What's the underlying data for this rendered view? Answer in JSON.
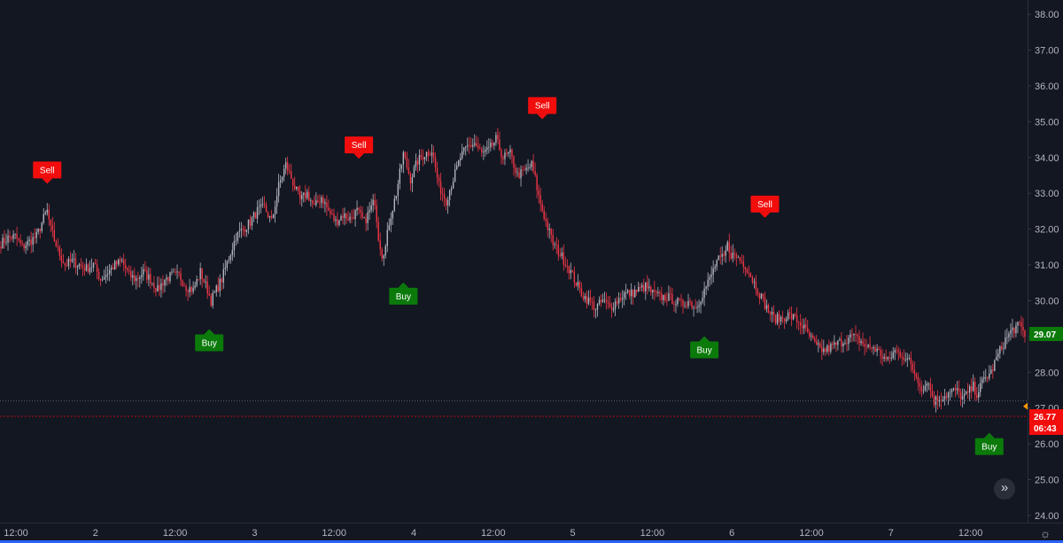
{
  "chart_data": {
    "type": "candlestick",
    "y_axis": {
      "side": "right",
      "range": [
        23.8,
        38.4
      ],
      "ticks": [
        "24.00",
        "25.00",
        "26.00",
        "27.00",
        "28.00",
        "29.00",
        "30.00",
        "31.00",
        "32.00",
        "33.00",
        "34.00",
        "35.00",
        "36.00",
        "37.00",
        "38.00"
      ]
    },
    "x_axis": {
      "ticks": [
        "12:00",
        "2",
        "12:00",
        "3",
        "12:00",
        "4",
        "12:00",
        "5",
        "12:00",
        "6",
        "12:00",
        "7",
        "12:00"
      ]
    },
    "colors": {
      "up": "#b2b5be",
      "down": "#f23645",
      "buy": "#0b7a0b",
      "sell": "#f20d0d",
      "background": "#131722",
      "current_price": "#f20d0d",
      "last_price": "#0b7a0b"
    },
    "price_anchors": [
      [
        0,
        31.6
      ],
      [
        4,
        31.75
      ],
      [
        8,
        31.8
      ],
      [
        12,
        31.5
      ],
      [
        16,
        31.65
      ],
      [
        20,
        31.8
      ],
      [
        24,
        32.3
      ],
      [
        26,
        32.5
      ],
      [
        28,
        32.0
      ],
      [
        32,
        31.4
      ],
      [
        36,
        31.0
      ],
      [
        40,
        31.1
      ],
      [
        44,
        31.0
      ],
      [
        48,
        30.9
      ],
      [
        52,
        31.0
      ],
      [
        56,
        30.6
      ],
      [
        60,
        30.8
      ],
      [
        64,
        31.0
      ],
      [
        68,
        31.1
      ],
      [
        72,
        30.7
      ],
      [
        76,
        30.6
      ],
      [
        80,
        30.8
      ],
      [
        84,
        30.6
      ],
      [
        88,
        30.3
      ],
      [
        92,
        30.6
      ],
      [
        96,
        30.7
      ],
      [
        100,
        30.7
      ],
      [
        104,
        30.4
      ],
      [
        108,
        30.3
      ],
      [
        112,
        30.8
      ],
      [
        116,
        30.3
      ],
      [
        118,
        30.0
      ],
      [
        120,
        30.2
      ],
      [
        124,
        30.6
      ],
      [
        128,
        31.2
      ],
      [
        132,
        31.8
      ],
      [
        136,
        32.0
      ],
      [
        140,
        32.2
      ],
      [
        144,
        32.5
      ],
      [
        148,
        32.6
      ],
      [
        152,
        32.2
      ],
      [
        156,
        33.2
      ],
      [
        160,
        33.8
      ],
      [
        164,
        33.3
      ],
      [
        168,
        32.8
      ],
      [
        172,
        33.0
      ],
      [
        176,
        32.6
      ],
      [
        180,
        32.9
      ],
      [
        184,
        32.5
      ],
      [
        188,
        32.2
      ],
      [
        192,
        32.4
      ],
      [
        196,
        32.3
      ],
      [
        200,
        32.5
      ],
      [
        204,
        32.2
      ],
      [
        208,
        32.6
      ],
      [
        210,
        32.8
      ],
      [
        212,
        31.8
      ],
      [
        214,
        31.3
      ],
      [
        216,
        31.5
      ],
      [
        218,
        32.2
      ],
      [
        222,
        33.0
      ],
      [
        226,
        34.1
      ],
      [
        230,
        33.4
      ],
      [
        234,
        33.9
      ],
      [
        238,
        34.1
      ],
      [
        242,
        34.2
      ],
      [
        246,
        33.2
      ],
      [
        250,
        32.8
      ],
      [
        254,
        33.4
      ],
      [
        258,
        34.0
      ],
      [
        262,
        34.3
      ],
      [
        266,
        34.4
      ],
      [
        270,
        34.1
      ],
      [
        274,
        34.2
      ],
      [
        278,
        34.5
      ],
      [
        282,
        34.0
      ],
      [
        286,
        34.1
      ],
      [
        290,
        33.5
      ],
      [
        294,
        33.6
      ],
      [
        298,
        33.8
      ],
      [
        300,
        33.4
      ],
      [
        302,
        32.9
      ],
      [
        306,
        32.2
      ],
      [
        310,
        31.6
      ],
      [
        314,
        31.3
      ],
      [
        318,
        31.0
      ],
      [
        322,
        30.6
      ],
      [
        326,
        30.2
      ],
      [
        330,
        30.0
      ],
      [
        334,
        29.8
      ],
      [
        338,
        30.0
      ],
      [
        342,
        29.8
      ],
      [
        346,
        30.0
      ],
      [
        350,
        30.2
      ],
      [
        354,
        30.2
      ],
      [
        358,
        30.3
      ],
      [
        362,
        30.4
      ],
      [
        366,
        30.2
      ],
      [
        370,
        30.1
      ],
      [
        374,
        30.1
      ],
      [
        378,
        30.0
      ],
      [
        382,
        29.9
      ],
      [
        386,
        30.0
      ],
      [
        390,
        29.8
      ],
      [
        394,
        30.2
      ],
      [
        398,
        30.6
      ],
      [
        402,
        31.1
      ],
      [
        406,
        31.2
      ],
      [
        408,
        31.55
      ],
      [
        410,
        31.3
      ],
      [
        414,
        31.2
      ],
      [
        418,
        31.0
      ],
      [
        422,
        30.6
      ],
      [
        426,
        30.2
      ],
      [
        430,
        29.8
      ],
      [
        434,
        29.5
      ],
      [
        438,
        29.5
      ],
      [
        442,
        29.6
      ],
      [
        446,
        29.5
      ],
      [
        450,
        29.3
      ],
      [
        454,
        29.0
      ],
      [
        458,
        28.7
      ],
      [
        462,
        28.6
      ],
      [
        466,
        28.7
      ],
      [
        470,
        28.8
      ],
      [
        474,
        28.9
      ],
      [
        478,
        29.0
      ],
      [
        482,
        28.9
      ],
      [
        486,
        28.7
      ],
      [
        490,
        28.7
      ],
      [
        494,
        28.5
      ],
      [
        498,
        28.3
      ],
      [
        502,
        28.6
      ],
      [
        506,
        28.5
      ],
      [
        510,
        28.3
      ],
      [
        514,
        27.9
      ],
      [
        518,
        27.5
      ],
      [
        520,
        27.8
      ],
      [
        524,
        27.2
      ],
      [
        528,
        27.3
      ],
      [
        532,
        27.4
      ],
      [
        536,
        27.5
      ],
      [
        540,
        27.3
      ],
      [
        542,
        27.35
      ],
      [
        546,
        27.6
      ],
      [
        548,
        27.4
      ],
      [
        552,
        27.8
      ],
      [
        556,
        28.0
      ],
      [
        560,
        28.5
      ],
      [
        564,
        28.9
      ],
      [
        568,
        29.2
      ],
      [
        572,
        29.3
      ],
      [
        575,
        29.07
      ]
    ],
    "signals": [
      {
        "label": "Sell",
        "type": "sell",
        "bar": 26,
        "price": 32.5
      },
      {
        "label": "Buy",
        "type": "buy",
        "bar": 117,
        "price": 30.0
      },
      {
        "label": "Sell",
        "type": "sell",
        "bar": 201,
        "price": 33.2
      },
      {
        "label": "Buy",
        "type": "buy",
        "bar": 226,
        "price": 31.3
      },
      {
        "label": "Sell",
        "type": "sell",
        "bar": 304,
        "price": 34.3
      },
      {
        "label": "Buy",
        "type": "buy",
        "bar": 395,
        "price": 29.8
      },
      {
        "label": "Sell",
        "type": "sell",
        "bar": 429,
        "price": 31.55
      },
      {
        "label": "Buy",
        "type": "buy",
        "bar": 555,
        "price": 27.1
      }
    ],
    "current_price": {
      "value": 26.77,
      "label": "26.77",
      "countdown": "06:43"
    },
    "last_price": {
      "value": 29.07,
      "label": "29.07"
    },
    "reference_line": 27.2,
    "marker_price": 27.05
  },
  "controls": {
    "scroll_icon": "double-chevron-right-icon",
    "scroll_glyph": "»",
    "settings_icon": "gear-icon",
    "settings_glyph": "☼"
  }
}
